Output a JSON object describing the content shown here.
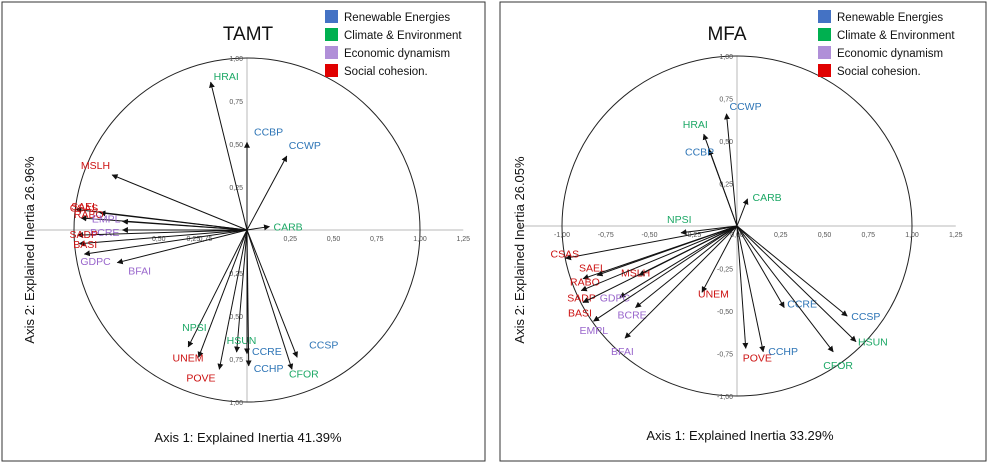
{
  "legend_colors": {
    "renewable": "#4472C4",
    "climate": "#00B050",
    "economic": "#B08FD8",
    "social": "#E00000"
  },
  "label_colors": {
    "renewable": "#2E75B6",
    "climate": "#1DA866",
    "economic": "#9966CC",
    "social": "#CC1111"
  },
  "chart_data": [
    {
      "type": "scatter",
      "subtype": "correlation-circle",
      "title": "TAMT",
      "xlabel": "Axis 1: Explained Inertia  41.39%",
      "ylabel": "Axis 2: Explained Inertia 26.96%",
      "xlim": [
        -1.25,
        1.25
      ],
      "ylim": [
        -1.0,
        1.0
      ],
      "x_ticks": [
        "0,50",
        "0,75",
        "0,25",
        "0,25",
        "0,50",
        "0,75",
        "1,00",
        "1,25"
      ],
      "y_ticks": [
        "1,00",
        "0,75",
        "0,50",
        "0,25",
        "0,00",
        "0,25",
        "0,50",
        "0,75",
        "1,00"
      ],
      "legend": [
        {
          "name": "Renewable  Energies",
          "group": "renewable"
        },
        {
          "name": "Climate & Environment",
          "group": "climate"
        },
        {
          "name": "Economic dynamism",
          "group": "economic"
        },
        {
          "name": "Social cohesion.",
          "group": "social"
        }
      ],
      "variables": [
        {
          "name": "HRAI",
          "group": "climate",
          "x": -0.21,
          "y": 0.86
        },
        {
          "name": "CCBP",
          "group": "renewable",
          "x": 0.0,
          "y": 0.51
        },
        {
          "name": "CCWP",
          "group": "renewable",
          "x": 0.23,
          "y": 0.43
        },
        {
          "name": "MSLH",
          "group": "social",
          "x": -0.78,
          "y": 0.32
        },
        {
          "name": "CSAS",
          "group": "social",
          "x": -0.99,
          "y": 0.12
        },
        {
          "name": "SAEL",
          "group": "social",
          "x": -0.85,
          "y": 0.1
        },
        {
          "name": "RABO",
          "group": "social",
          "x": -0.96,
          "y": 0.07
        },
        {
          "name": "EMPL",
          "group": "economic",
          "x": -0.72,
          "y": 0.05
        },
        {
          "name": "BCRE",
          "group": "economic",
          "x": -0.72,
          "y": 0.0
        },
        {
          "name": "SADP",
          "group": "social",
          "x": -0.98,
          "y": -0.03
        },
        {
          "name": "BASI",
          "group": "social",
          "x": -0.97,
          "y": -0.08
        },
        {
          "name": "GDPC",
          "group": "economic",
          "x": -0.94,
          "y": -0.14
        },
        {
          "name": "BFAI",
          "group": "economic",
          "x": -0.75,
          "y": -0.19
        },
        {
          "name": "CARB",
          "group": "climate",
          "x": 0.13,
          "y": 0.02
        },
        {
          "name": "NPSI",
          "group": "climate",
          "x": -0.34,
          "y": -0.68
        },
        {
          "name": "UNEM",
          "group": "social",
          "x": -0.28,
          "y": -0.74
        },
        {
          "name": "POVE",
          "group": "social",
          "x": -0.16,
          "y": -0.81
        },
        {
          "name": "HSUN",
          "group": "climate",
          "x": -0.06,
          "y": -0.71
        },
        {
          "name": "CCRE",
          "group": "renewable",
          "x": 0.0,
          "y": -0.72
        },
        {
          "name": "CCHP",
          "group": "renewable",
          "x": 0.01,
          "y": -0.79
        },
        {
          "name": "CCSP",
          "group": "renewable",
          "x": 0.29,
          "y": -0.74
        },
        {
          "name": "CFOR",
          "group": "climate",
          "x": 0.26,
          "y": -0.81
        }
      ]
    },
    {
      "type": "scatter",
      "subtype": "correlation-circle",
      "title": "MFA",
      "xlabel": "Axis 1: Explained Inertia  33.29%",
      "ylabel": "Axis 2: Explained Inertia 26.05%",
      "xlim": [
        -1.25,
        1.25
      ],
      "ylim": [
        -1.0,
        1.0
      ],
      "x_ticks": [
        "-1,00",
        "-0,75",
        "-0,50",
        "-0,25",
        "0,00",
        "0,25",
        "0,50",
        "0,75",
        "1,00",
        "1,25"
      ],
      "y_ticks": [
        "1,00",
        "0,75",
        "0,50",
        "0,25",
        "0,00",
        "-0,25",
        "-0,50",
        "-0,75",
        "-1,00"
      ],
      "legend": [
        {
          "name": "Renewable  Energies",
          "group": "renewable"
        },
        {
          "name": "Climate & Environment",
          "group": "climate"
        },
        {
          "name": "Economic dynamism",
          "group": "economic"
        },
        {
          "name": "Social cohesion.",
          "group": "social"
        }
      ],
      "variables": [
        {
          "name": "CCWP",
          "group": "renewable",
          "x": -0.06,
          "y": 0.66
        },
        {
          "name": "HRAI",
          "group": "climate",
          "x": -0.19,
          "y": 0.54
        },
        {
          "name": "CCBP",
          "group": "renewable",
          "x": -0.16,
          "y": 0.45
        },
        {
          "name": "CARB",
          "group": "climate",
          "x": 0.06,
          "y": 0.16
        },
        {
          "name": "NPSI",
          "group": "climate",
          "x": -0.32,
          "y": -0.04
        },
        {
          "name": "CSAS",
          "group": "social",
          "x": -0.98,
          "y": -0.19
        },
        {
          "name": "SAEL",
          "group": "social",
          "x": -0.8,
          "y": -0.29
        },
        {
          "name": "RABO",
          "group": "social",
          "x": -0.88,
          "y": -0.31
        },
        {
          "name": "MSLH",
          "group": "social",
          "x": -0.56,
          "y": -0.29
        },
        {
          "name": "SADP",
          "group": "social",
          "x": -0.89,
          "y": -0.38
        },
        {
          "name": "GDPC",
          "group": "economic",
          "x": -0.67,
          "y": -0.42
        },
        {
          "name": "BASI",
          "group": "social",
          "x": -0.88,
          "y": -0.45
        },
        {
          "name": "BCRE",
          "group": "economic",
          "x": -0.58,
          "y": -0.48
        },
        {
          "name": "EMPL",
          "group": "economic",
          "x": -0.82,
          "y": -0.56
        },
        {
          "name": "BFAI",
          "group": "economic",
          "x": -0.64,
          "y": -0.66
        },
        {
          "name": "UNEM",
          "group": "social",
          "x": -0.2,
          "y": -0.39
        },
        {
          "name": "POVE",
          "group": "social",
          "x": 0.05,
          "y": -0.72
        },
        {
          "name": "CCHP",
          "group": "renewable",
          "x": 0.15,
          "y": -0.74
        },
        {
          "name": "CCRE",
          "group": "renewable",
          "x": 0.27,
          "y": -0.48
        },
        {
          "name": "CCSP",
          "group": "renewable",
          "x": 0.63,
          "y": -0.53
        },
        {
          "name": "HSUN",
          "group": "climate",
          "x": 0.68,
          "y": -0.68
        },
        {
          "name": "CFOR",
          "group": "climate",
          "x": 0.55,
          "y": -0.74
        }
      ]
    }
  ]
}
